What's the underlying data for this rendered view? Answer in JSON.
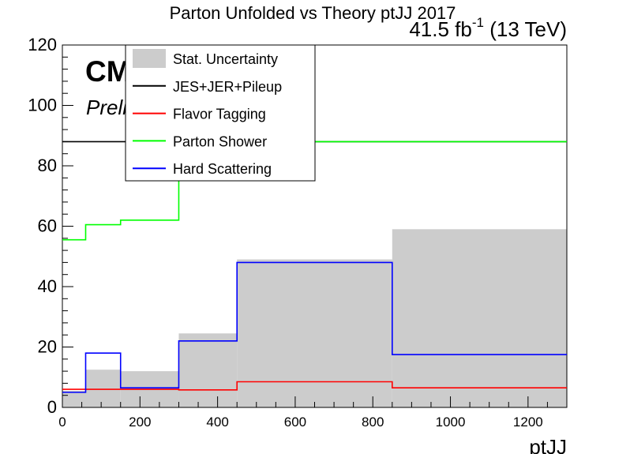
{
  "chart_data": {
    "type": "histogram",
    "title": "Parton Unfolded vs Theory ptJJ 2017",
    "lumi_label": "41.5 fb",
    "lumi_superscript": "-1",
    "energy_label": " (13 TeV)",
    "cms_label": "CMS",
    "preliminary_label": "Preliminary",
    "xlabel": "ptJJ",
    "ylabel": "",
    "xlim": [
      0,
      1300
    ],
    "ylim": [
      0,
      120
    ],
    "x_ticks": [
      0,
      200,
      400,
      600,
      800,
      1000,
      1200
    ],
    "y_ticks": [
      0,
      20,
      40,
      60,
      80,
      100,
      120
    ],
    "bin_edges": [
      0,
      60,
      150,
      300,
      450,
      850,
      1300
    ],
    "legend_position": "top-left",
    "series": [
      {
        "name": "Stat. Uncertainty",
        "style": "fill",
        "color": "#cccccc",
        "values": [
          5.5,
          12.5,
          12.0,
          24.5,
          49.0,
          59.0
        ]
      },
      {
        "name": "JES+JER+Pileup",
        "style": "line",
        "color": "#000000",
        "values": [
          88.0,
          88.0,
          88.0,
          88.0,
          88.0,
          88.0
        ]
      },
      {
        "name": "Flavor Tagging",
        "style": "line",
        "color": "#ff0000",
        "values": [
          6.0,
          6.0,
          6.0,
          5.8,
          8.5,
          6.5
        ]
      },
      {
        "name": "Parton Shower",
        "style": "line",
        "color": "#00ff00",
        "values": [
          55.5,
          60.5,
          62.0,
          88.0,
          88.0,
          88.0
        ]
      },
      {
        "name": "Hard Scattering",
        "style": "line",
        "color": "#0000ff",
        "values": [
          5.0,
          18.0,
          6.5,
          22.0,
          48.0,
          17.5
        ]
      }
    ]
  }
}
